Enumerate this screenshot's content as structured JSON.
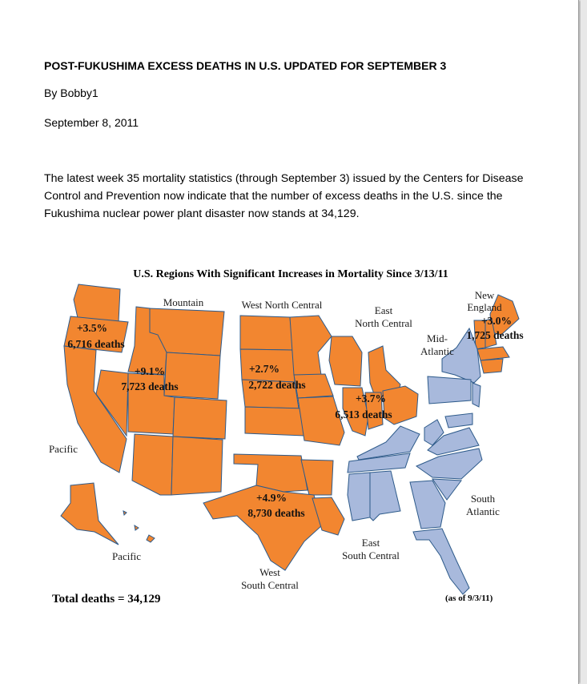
{
  "document": {
    "title": "POST-FUKUSHIMA EXCESS DEATHS IN U.S. UPDATED FOR SEPTEMBER 3",
    "byline": "By Bobby1",
    "date": "September 8, 2011",
    "paragraph": "The latest week 35 mortality statistics (through September 3) issued by the Centers for Disease Control and Prevention now indicate that the number of excess deaths in the U.S. since the Fukushima nuclear power plant disaster now stands at 34,129."
  },
  "map": {
    "title": "U.S. Regions With Significant Increases in Mortality Since 3/13/11",
    "colors": {
      "increase": "#f28630",
      "no_increase": "#a8b9dc",
      "border": "#2d5a8a"
    },
    "regions": {
      "pacific": {
        "label": "Pacific",
        "alaska_label": "Pacific",
        "pct": "+3.5%",
        "deaths": "6,716 deaths"
      },
      "mountain": {
        "label": "Mountain",
        "pct": "+9.1%",
        "deaths": "7,723 deaths"
      },
      "west_north_central": {
        "label": "West North Central",
        "pct": "+2.7%",
        "deaths": "2,722 deaths"
      },
      "east_north_central": {
        "label_1": "East",
        "label_2": "North Central",
        "pct": "+3.7%",
        "deaths": "6,513 deaths"
      },
      "new_england": {
        "label_1": "New",
        "label_2": "England",
        "pct": "+3.0%",
        "deaths": "1,725 deaths"
      },
      "mid_atlantic": {
        "label_1": "Mid-",
        "label_2": "Atlantic"
      },
      "west_south_central": {
        "label_1": "West",
        "label_2": "South Central",
        "pct": "+4.9%",
        "deaths": "8,730 deaths"
      },
      "east_south_central": {
        "label_1": "East",
        "label_2": "South Central"
      },
      "south_atlantic": {
        "label_1": "South",
        "label_2": "Atlantic"
      }
    },
    "total": "Total deaths = 34,129",
    "as_of": "(as of 9/3/11)"
  }
}
